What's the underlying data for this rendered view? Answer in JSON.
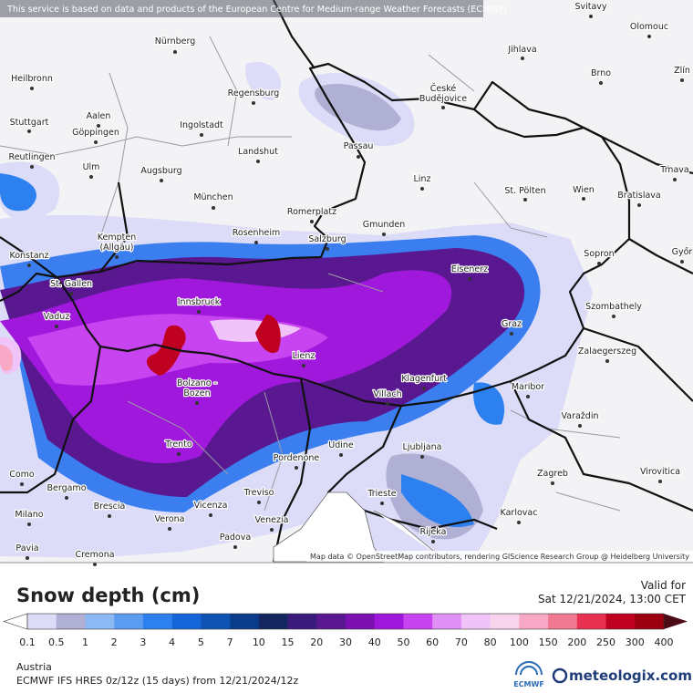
{
  "header": {
    "notice": "This service is based on data and products of the European Centre for Medium-range Weather Forecasts (ECMWF)"
  },
  "map": {
    "cities": [
      [
        "Svitavy"
      ],
      [
        "Olomouc"
      ],
      [
        "Nürnberg"
      ],
      [
        "Jihlava"
      ],
      [
        "Brno"
      ],
      [
        "Zlín"
      ],
      [
        "Heilbronn"
      ],
      [
        "Regensburg"
      ],
      [
        "České",
        "Budějovice"
      ],
      [
        "Stuttgart"
      ],
      [
        "Aalen"
      ],
      [
        "Göppingen"
      ],
      [
        "Ingolstadt"
      ],
      [
        "Landshut"
      ],
      [
        "Passau"
      ],
      [
        "Reutlingen"
      ],
      [
        "Ulm"
      ],
      [
        "Augsburg"
      ],
      [
        "Linz"
      ],
      [
        "St. Pölten"
      ],
      [
        "Wien"
      ],
      [
        "Bratislava"
      ],
      [
        "Trnava"
      ],
      [
        "München"
      ],
      [
        "Romerplatz"
      ],
      [
        "Gmunden"
      ],
      [
        "Rosenheim"
      ],
      [
        "Salzburg"
      ],
      [
        "Kempten",
        "(Allgäu)"
      ],
      [
        "Konstanz"
      ],
      [
        "Sopron"
      ],
      [
        "Győr"
      ],
      [
        "Eisenerz"
      ],
      [
        "St. Gallen"
      ],
      [
        "Innsbruck"
      ],
      [
        "Vaduz"
      ],
      [
        "Szombathely"
      ],
      [
        "Graz"
      ],
      [
        "Lienz"
      ],
      [
        "Zalaegerszeg"
      ],
      [
        "Klagenfurt"
      ],
      [
        "Maribor"
      ],
      [
        "Bolzano -",
        "Bozen"
      ],
      [
        "Villach"
      ],
      [
        "Varaždin"
      ],
      [
        "Trento"
      ],
      [
        "Udine"
      ],
      [
        "Pordenone"
      ],
      [
        "Ljubljana"
      ],
      [
        "Como"
      ],
      [
        "Zagreb"
      ],
      [
        "Virovitica"
      ],
      [
        "Bergamo"
      ],
      [
        "Trieste"
      ],
      [
        "Treviso"
      ],
      [
        "Brescia"
      ],
      [
        "Vicenza"
      ],
      [
        "Karlovac"
      ],
      [
        "Milano"
      ],
      [
        "Verona"
      ],
      [
        "Venezia"
      ],
      [
        "Rijeka"
      ],
      [
        "Padova"
      ],
      [
        "Pavia"
      ],
      [
        "Cremona"
      ]
    ],
    "attribution": "Map data © OpenStreetMap contributors, rendering GIScience Research Group @ Heidelberg University"
  },
  "legend": {
    "title": "Snow depth (cm)",
    "levels": [
      0.1,
      0.5,
      1,
      2,
      3,
      4,
      5,
      7,
      10,
      15,
      20,
      30,
      40,
      50,
      60,
      70,
      80,
      100,
      150,
      200,
      250,
      300,
      400
    ],
    "below_color": "#ffffff",
    "colors": [
      "#dcdcf8",
      "#b0b0d4",
      "#8cb8f4",
      "#5c9cf0",
      "#2c80f0",
      "#1466d8",
      "#0e52b4",
      "#0a3c8c",
      "#142660",
      "#3a1a7c",
      "#5a1890",
      "#7c10b0",
      "#a018dc",
      "#c844f0",
      "#e090f4",
      "#f0c4f8",
      "#f8d4ec",
      "#f8a8c4",
      "#f07890",
      "#e83050",
      "#c00020",
      "#9c0010"
    ],
    "above_color": "#4c0a14"
  },
  "valid": {
    "label": "Valid for",
    "time": "Sat 12/21/2024, 13:00 CET"
  },
  "footer": {
    "region": "Austria",
    "model": "ECMWF IFS HRES 0z/12z (15 days) from 12/21/2024/12z",
    "ecmwf": "ECMWF",
    "brand": "meteologix.com"
  }
}
